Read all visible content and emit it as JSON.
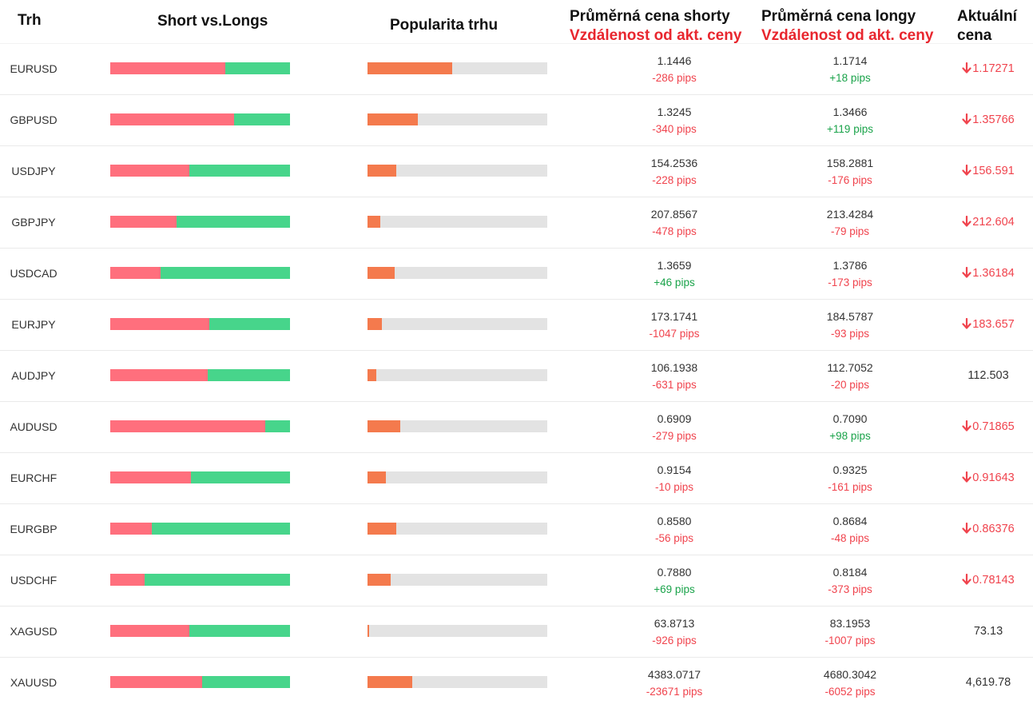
{
  "header": {
    "market": "Trh",
    "ratio": "Short vs.Longs",
    "popularity": "Popularita trhu",
    "short_avg": "Průměrná cena shorty",
    "short_dist": "Vzdálenost od akt. ceny",
    "long_avg": "Průměrná cena longy",
    "long_dist": "Vzdálenost od akt. ceny",
    "current_line1": "Aktuální",
    "current_line2": "cena"
  },
  "colors": {
    "short": "#ff6f7d",
    "long": "#47d58b",
    "popularity": "#f47a4d",
    "popularity_track": "#e3e3e3",
    "negative": "#f0434d",
    "positive": "#1aa34a",
    "header_red": "#e8262e"
  },
  "rows": [
    {
      "market": "EURUSD",
      "short_pct": 64,
      "popularity_pct": 47,
      "short_avg": "1.1446",
      "short_pips": "-286 pips",
      "long_avg": "1.1714",
      "long_pips": "+18 pips",
      "current": "1.17271",
      "trend": "down"
    },
    {
      "market": "GBPUSD",
      "short_pct": 69,
      "popularity_pct": 28,
      "short_avg": "1.3245",
      "short_pips": "-340 pips",
      "long_avg": "1.3466",
      "long_pips": "+119 pips",
      "current": "1.35766",
      "trend": "down"
    },
    {
      "market": "USDJPY",
      "short_pct": 44,
      "popularity_pct": 16,
      "short_avg": "154.2536",
      "short_pips": "-228 pips",
      "long_avg": "158.2881",
      "long_pips": "-176 pips",
      "current": "156.591",
      "trend": "down"
    },
    {
      "market": "GBPJPY",
      "short_pct": 37,
      "popularity_pct": 7,
      "short_avg": "207.8567",
      "short_pips": "-478 pips",
      "long_avg": "213.4284",
      "long_pips": "-79 pips",
      "current": "212.604",
      "trend": "down"
    },
    {
      "market": "USDCAD",
      "short_pct": 28,
      "popularity_pct": 15,
      "short_avg": "1.3659",
      "short_pips": "+46 pips",
      "long_avg": "1.3786",
      "long_pips": "-173 pips",
      "current": "1.36184",
      "trend": "down"
    },
    {
      "market": "EURJPY",
      "short_pct": 55,
      "popularity_pct": 8,
      "short_avg": "173.1741",
      "short_pips": "-1047 pips",
      "long_avg": "184.5787",
      "long_pips": "-93 pips",
      "current": "183.657",
      "trend": "down"
    },
    {
      "market": "AUDJPY",
      "short_pct": 54,
      "popularity_pct": 5,
      "short_avg": "106.1938",
      "short_pips": "-631 pips",
      "long_avg": "112.7052",
      "long_pips": "-20 pips",
      "current": "112.503",
      "trend": "flat"
    },
    {
      "market": "AUDUSD",
      "short_pct": 86,
      "popularity_pct": 18,
      "short_avg": "0.6909",
      "short_pips": "-279 pips",
      "long_avg": "0.7090",
      "long_pips": "+98 pips",
      "current": "0.71865",
      "trend": "down"
    },
    {
      "market": "EURCHF",
      "short_pct": 45,
      "popularity_pct": 10,
      "short_avg": "0.9154",
      "short_pips": "-10 pips",
      "long_avg": "0.9325",
      "long_pips": "-161 pips",
      "current": "0.91643",
      "trend": "down"
    },
    {
      "market": "EURGBP",
      "short_pct": 23,
      "popularity_pct": 16,
      "short_avg": "0.8580",
      "short_pips": "-56 pips",
      "long_avg": "0.8684",
      "long_pips": "-48 pips",
      "current": "0.86376",
      "trend": "down"
    },
    {
      "market": "USDCHF",
      "short_pct": 19,
      "popularity_pct": 13,
      "short_avg": "0.7880",
      "short_pips": "+69 pips",
      "long_avg": "0.8184",
      "long_pips": "-373 pips",
      "current": "0.78143",
      "trend": "down"
    },
    {
      "market": "XAGUSD",
      "short_pct": 44,
      "popularity_pct": 1,
      "short_avg": "63.8713",
      "short_pips": "-926 pips",
      "long_avg": "83.1953",
      "long_pips": "-1007 pips",
      "current": "73.13",
      "trend": "flat"
    },
    {
      "market": "XAUUSD",
      "short_pct": 51,
      "popularity_pct": 25,
      "short_avg": "4383.0717",
      "short_pips": "-23671 pips",
      "long_avg": "4680.3042",
      "long_pips": "-6052 pips",
      "current": "4,619.78",
      "trend": "flat"
    }
  ]
}
